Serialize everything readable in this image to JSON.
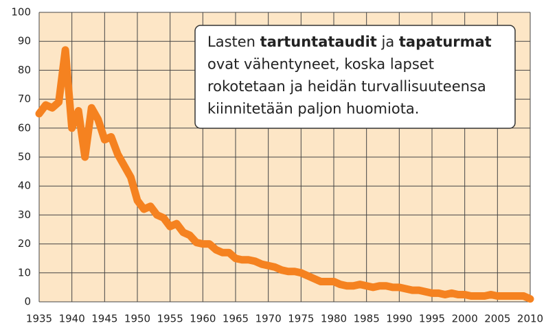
{
  "chart_data": {
    "type": "line",
    "x": [
      1935,
      1936,
      1937,
      1938,
      1939,
      1940,
      1941,
      1942,
      1943,
      1944,
      1945,
      1946,
      1947,
      1948,
      1949,
      1950,
      1951,
      1952,
      1953,
      1954,
      1955,
      1956,
      1957,
      1958,
      1959,
      1960,
      1961,
      1962,
      1963,
      1964,
      1965,
      1966,
      1967,
      1968,
      1969,
      1970,
      1971,
      1972,
      1973,
      1974,
      1975,
      1976,
      1977,
      1978,
      1979,
      1980,
      1981,
      1982,
      1983,
      1984,
      1985,
      1986,
      1987,
      1988,
      1989,
      1990,
      1991,
      1992,
      1993,
      1994,
      1995,
      1996,
      1997,
      1998,
      1999,
      2000,
      2001,
      2002,
      2003,
      2004,
      2005,
      2006,
      2007,
      2008,
      2009,
      2010
    ],
    "values": [
      65,
      68,
      67,
      69,
      87,
      60,
      66,
      50,
      67,
      63,
      56,
      57,
      51,
      47,
      43,
      35,
      32,
      33,
      30,
      29,
      26,
      27,
      24,
      23,
      20.5,
      20,
      20,
      18,
      17,
      17,
      15,
      14.5,
      14.5,
      14,
      13,
      12.5,
      12,
      11,
      10.5,
      10.5,
      10,
      9,
      8,
      7,
      7,
      7,
      6,
      5.5,
      5.5,
      6,
      5.5,
      5,
      5.5,
      5.5,
      5,
      5,
      4.5,
      4,
      4,
      3.5,
      3,
      3,
      2.5,
      3,
      2.5,
      2.5,
      2,
      2,
      2,
      2.5,
      2,
      2,
      2,
      2,
      2,
      1
    ],
    "color": "#f58220",
    "xlim": [
      1935,
      2010
    ],
    "xticks": [
      1935,
      1940,
      1945,
      1950,
      1955,
      1960,
      1965,
      1970,
      1975,
      1980,
      1985,
      1990,
      1995,
      2000,
      2005,
      2010
    ],
    "ylim": [
      0,
      100
    ],
    "yticks": [
      0,
      10,
      20,
      30,
      40,
      50,
      60,
      70,
      80,
      90,
      100
    ],
    "grid": true,
    "annotation": {
      "lines": [
        [
          {
            "text": "Lasten "
          },
          {
            "text": "tartuntataudit",
            "bold": true
          },
          {
            "text": " ja "
          },
          {
            "text": "tapaturmat",
            "bold": true
          }
        ],
        [
          {
            "text": "ovat vähentyneet, koska lapset"
          }
        ],
        [
          {
            "text": "rokotetaan ja heidän turvallisuuteensa"
          }
        ],
        [
          {
            "text": "kiinnitetään paljon huomiota."
          }
        ]
      ]
    }
  }
}
